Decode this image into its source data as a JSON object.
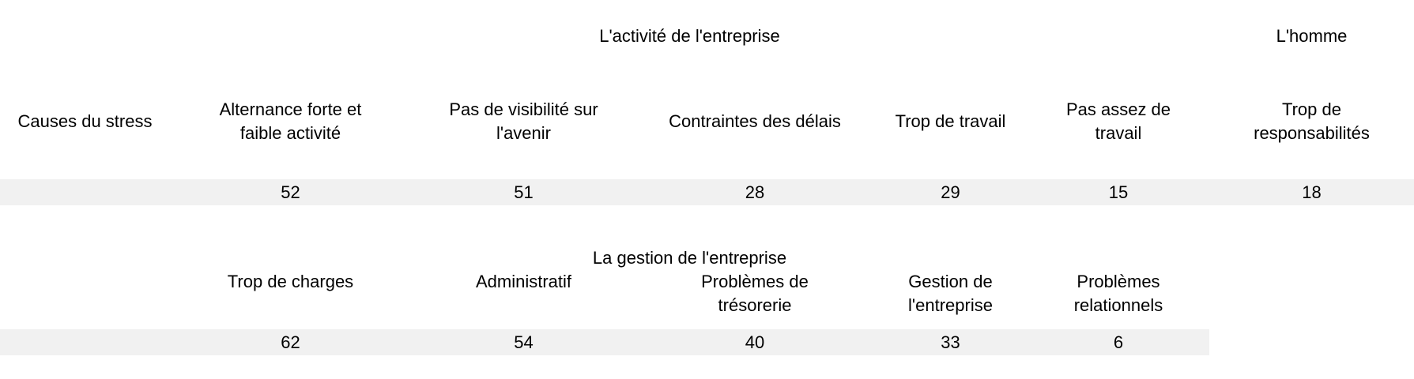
{
  "table": {
    "row_label": "Causes du stress",
    "sections": [
      {
        "group_label": "L'activité de l'entreprise",
        "group_label_right": "L'homme",
        "columns": [
          "Alternance forte et\nfaible activité",
          "Pas de visibilité sur\nl'avenir",
          "Contraintes des délais",
          "Trop de travail",
          "Pas assez de\ntravail",
          "Trop de\nresponsabilités"
        ],
        "values": [
          52,
          51,
          28,
          29,
          15,
          18
        ]
      },
      {
        "group_label": "La gestion de l'entreprise",
        "columns": [
          "Trop de charges",
          "Administratif",
          "Problèmes de\ntrésorerie",
          "Gestion de\nl'entreprise",
          "Problèmes\nrelationnels"
        ],
        "values": [
          62,
          54,
          40,
          33,
          6
        ]
      }
    ],
    "band_color": "#f1f1f1"
  }
}
